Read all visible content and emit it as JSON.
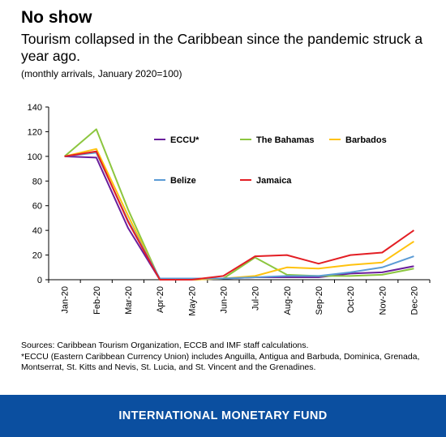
{
  "header": {
    "title": "No show",
    "subtitle": "Tourism collapsed in the Caribbean since the pandemic struck a year ago.",
    "units": "(monthly arrivals, January 2020=100)"
  },
  "chart_data": {
    "type": "line",
    "categories": [
      "Jan-20",
      "Feb-20",
      "Mar-20",
      "Apr-20",
      "May-20",
      "Jun-20",
      "Jul-20",
      "Aug-20",
      "Sep-20",
      "Oct-20",
      "Nov-20",
      "Dec-20"
    ],
    "ylim": [
      0,
      140
    ],
    "yticks": [
      0,
      20,
      40,
      60,
      80,
      100,
      120,
      140
    ],
    "grid": false,
    "legend_position": "inside-top",
    "series": [
      {
        "name": "ECCU*",
        "color": "#6a1e9c",
        "values": [
          100,
          99,
          42,
          0,
          0,
          1,
          2,
          2,
          2,
          5,
          6,
          11
        ]
      },
      {
        "name": "The Bahamas",
        "color": "#8cc63f",
        "values": [
          100,
          122,
          57,
          0,
          0,
          1,
          18,
          4,
          3,
          3,
          4,
          9
        ]
      },
      {
        "name": "Barbados",
        "color": "#ffc20e",
        "values": [
          100,
          106,
          52,
          0,
          0,
          1,
          3,
          10,
          9,
          12,
          14,
          31
        ]
      },
      {
        "name": "Belize",
        "color": "#5b9bd5",
        "values": [
          100,
          103,
          48,
          1,
          1,
          1,
          2,
          3,
          3,
          6,
          10,
          19
        ]
      },
      {
        "name": "Jamaica",
        "color": "#e31e24",
        "values": [
          100,
          104,
          47,
          0,
          0,
          3,
          19,
          20,
          13,
          20,
          22,
          40
        ]
      }
    ]
  },
  "notes": {
    "sources": "Sources: Caribbean Tourism Organization, ECCB and IMF staff calculations.",
    "footnote": "*ECCU (Eastern Caribbean Currency Union) includes Anguilla, Antigua and Barbuda, Dominica, Grenada, Montserrat, St. Kitts and Nevis, St. Lucia, and St. Vincent and the Grenadines."
  },
  "footer": {
    "label": "INTERNATIONAL MONETARY FUND"
  }
}
